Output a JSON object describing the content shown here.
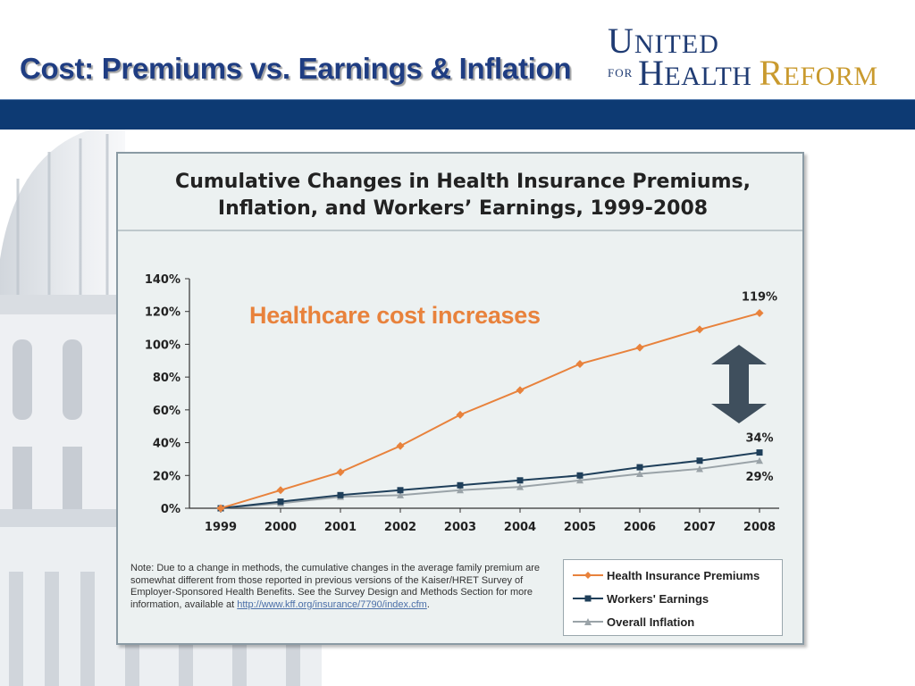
{
  "slide": {
    "title": "Cost: Premiums vs. Earnings & Inflation"
  },
  "logo": {
    "line1": "UNITED",
    "for": "FOR",
    "health": "HEALTH",
    "reform": "REFORM"
  },
  "colors": {
    "band": "#0d3a73",
    "premiums": "#e8823c",
    "earnings": "#1f3f5a",
    "inflation": "#9aa3a8",
    "callout": "#e8823c"
  },
  "callout": "Healthcare cost increases",
  "arrow_icon": "double-arrow-icon",
  "chart_data": {
    "type": "line",
    "title": "Cumulative Changes in Health Insurance Premiums, Inflation, and Workers’ Earnings, 1999-2008",
    "title_lines": [
      "Cumulative Changes in Health Insurance Premiums,",
      "Inflation, and Workers’ Earnings, 1999-2008"
    ],
    "x": [
      "1999",
      "2000",
      "2001",
      "2002",
      "2003",
      "2004",
      "2005",
      "2006",
      "2007",
      "2008"
    ],
    "ylim": [
      0,
      140
    ],
    "yticks": [
      0,
      20,
      40,
      60,
      80,
      100,
      120,
      140
    ],
    "ytick_labels": [
      "0%",
      "20%",
      "40%",
      "60%",
      "80%",
      "100%",
      "120%",
      "140%"
    ],
    "legend_position": "bottom-right",
    "series": [
      {
        "name": "Health Insurance Premiums",
        "values": [
          0,
          11,
          22,
          38,
          57,
          72,
          88,
          98,
          109,
          119
        ],
        "color": "#e8823c",
        "marker": "diamond"
      },
      {
        "name": "Workers' Earnings",
        "values": [
          0,
          4,
          8,
          11,
          14,
          17,
          20,
          25,
          29,
          34
        ],
        "color": "#1f3f5a",
        "marker": "square"
      },
      {
        "name": "Overall Inflation",
        "values": [
          0,
          3,
          7,
          8,
          11,
          13,
          17,
          21,
          24,
          29
        ],
        "color": "#9aa3a8",
        "marker": "triangle"
      }
    ],
    "data_labels": [
      "119%",
      "34%",
      "29%"
    ],
    "note": "Note:  Due to a change in methods, the cumulative changes in the average family premium are somewhat different from those reported in previous versions of the Kaiser/HRET Survey of Employer-Sponsored Health Benefits.  See the Survey Design and Methods Section for more information, available at",
    "note_link": "http://www.kff.org/insurance/7790/index.cfm",
    "note_end": "."
  }
}
